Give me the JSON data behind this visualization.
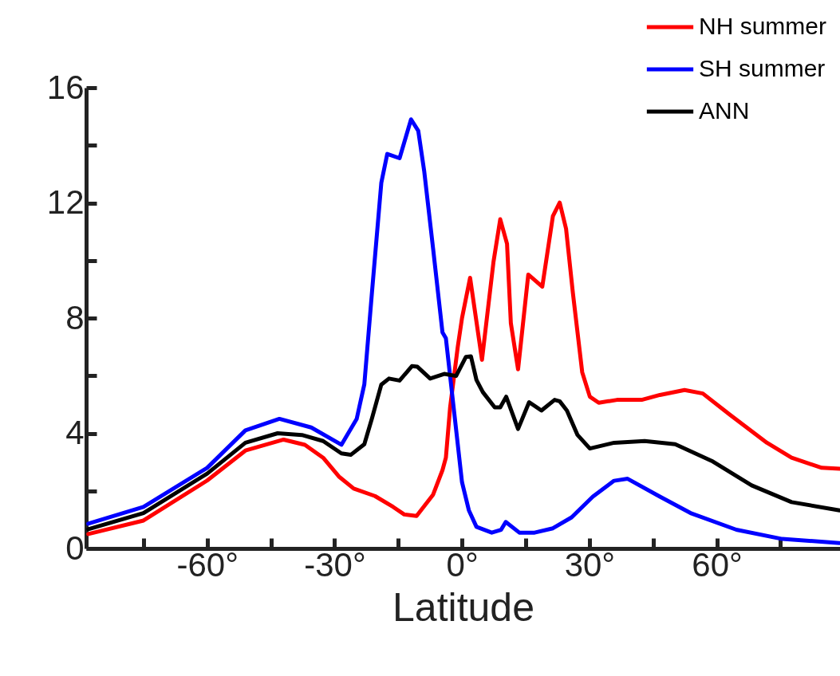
{
  "chart_data": {
    "type": "line",
    "xlabel": "Latitude",
    "xlim": [
      -88.5,
      89
    ],
    "ylim": [
      0,
      16
    ],
    "xticks": [
      {
        "value": -75,
        "label": null
      },
      {
        "value": -60,
        "label": "-60°"
      },
      {
        "value": -45,
        "label": null
      },
      {
        "value": -30,
        "label": "-30°"
      },
      {
        "value": -15,
        "label": null
      },
      {
        "value": 0,
        "label": "0°"
      },
      {
        "value": 15,
        "label": null
      },
      {
        "value": 30,
        "label": "30°"
      },
      {
        "value": 45,
        "label": null
      },
      {
        "value": 60,
        "label": "60°"
      },
      {
        "value": 75,
        "label": null
      }
    ],
    "yticks": [
      0,
      {
        "value": 2,
        "label": null
      },
      4,
      {
        "value": 6,
        "label": null
      },
      8,
      {
        "value": 10,
        "label": null
      },
      12,
      {
        "value": 14,
        "label": null
      },
      16
    ],
    "grid": false,
    "legend": "top right",
    "line_style": "solid",
    "marker": "none",
    "series": [
      {
        "name": "NH summer",
        "color": "#ff0000",
        "x": [
          -88,
          -75,
          -60,
          -51,
          -42,
          -37,
          -32.7,
          -29,
          -25.5,
          -20.5,
          -16.2,
          -13.6,
          -10.7,
          -6.8,
          -4.6,
          -3.8,
          -2.8,
          -1,
          0,
          1.9,
          4.7,
          7.4,
          9,
          10.6,
          11.5,
          13.2,
          15.6,
          18.9,
          21.4,
          23,
          24.5,
          26.1,
          28.3,
          30.1,
          32.2,
          36.5,
          42.3,
          46.6,
          52.4,
          56.7,
          63.2,
          71.8,
          77.6,
          84.7,
          88.9
        ],
        "values": [
          0.5,
          0.97,
          2.36,
          3.4,
          3.78,
          3.6,
          3.15,
          2.5,
          2.08,
          1.82,
          1.44,
          1.18,
          1.13,
          1.87,
          2.72,
          3.15,
          4.9,
          7.0,
          8.0,
          9.4,
          6.55,
          9.94,
          11.43,
          10.58,
          7.82,
          6.22,
          9.51,
          9.09,
          11.54,
          12.01,
          11.1,
          8.88,
          6.12,
          5.27,
          5.06,
          5.16,
          5.16,
          5.33,
          5.5,
          5.38,
          4.63,
          3.67,
          3.15,
          2.8,
          2.77
        ]
      },
      {
        "name": "SH summer",
        "color": "#0000ff",
        "x": [
          -88,
          -75,
          -60,
          -51,
          -43,
          -35.5,
          -28.4,
          -24.8,
          -23,
          -21.2,
          -19,
          -17.6,
          -14.7,
          -12,
          -10.3,
          -8.9,
          -6.8,
          -4.6,
          -3.8,
          0,
          1.6,
          3.4,
          7,
          9.2,
          10.3,
          13.5,
          17.1,
          21.4,
          25.8,
          30.8,
          35.8,
          39,
          46.6,
          53.8,
          64.6,
          75.4,
          88.9
        ],
        "values": [
          0.86,
          1.44,
          2.8,
          4.1,
          4.5,
          4.2,
          3.6,
          4.5,
          5.7,
          8.9,
          12.7,
          13.7,
          13.55,
          14.9,
          14.5,
          13.1,
          10.4,
          7.5,
          7.3,
          2.3,
          1.33,
          0.75,
          0.55,
          0.65,
          0.92,
          0.55,
          0.55,
          0.7,
          1.08,
          1.8,
          2.35,
          2.42,
          1.8,
          1.23,
          0.65,
          0.33,
          0.19
        ]
      },
      {
        "name": "ANN",
        "color": "#000000",
        "x": [
          -88,
          -75,
          -60,
          -51,
          -43.4,
          -37.7,
          -32.7,
          -28.4,
          -26.2,
          -23,
          -21.2,
          -19,
          -17.2,
          -14.7,
          -11.8,
          -10.5,
          -7.5,
          -4.2,
          -1.4,
          0.9,
          2.1,
          3.4,
          4.9,
          7.7,
          9,
          10.4,
          13.2,
          15.8,
          18.7,
          21.8,
          23,
          24.7,
          27.2,
          30.1,
          35.8,
          43,
          50.2,
          58.8,
          68.2,
          77.6,
          88.9
        ],
        "values": [
          0.67,
          1.23,
          2.6,
          3.67,
          4.0,
          3.94,
          3.73,
          3.3,
          3.25,
          3.62,
          4.52,
          5.69,
          5.9,
          5.83,
          6.33,
          6.31,
          5.9,
          6.06,
          5.99,
          6.65,
          6.67,
          5.85,
          5.43,
          4.9,
          4.9,
          5.27,
          4.15,
          5.08,
          4.79,
          5.16,
          5.11,
          4.79,
          3.94,
          3.47,
          3.67,
          3.73,
          3.62,
          3.04,
          2.19,
          1.61,
          1.32
        ]
      }
    ]
  }
}
